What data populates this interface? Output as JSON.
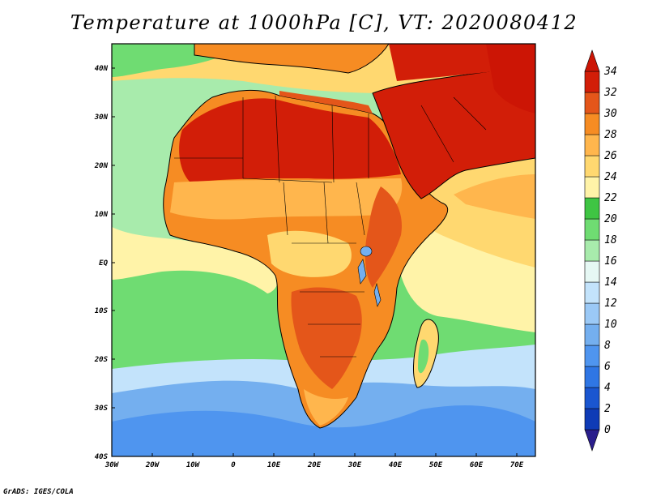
{
  "title": "Temperature at 1000hPa [C], VT: 2020080412",
  "footer": "GrADS: IGES/COLA",
  "map": {
    "lat_ticks": [
      "40N",
      "30N",
      "20N",
      "10N",
      "EQ",
      "10S",
      "20S",
      "30S",
      "40S"
    ],
    "lon_ticks": [
      "30W",
      "20W",
      "10W",
      "0",
      "10E",
      "20E",
      "30E",
      "40E",
      "50E",
      "60E",
      "70E"
    ]
  },
  "colorbar": {
    "levels": [
      "0",
      "2",
      "4",
      "6",
      "8",
      "10",
      "12",
      "14",
      "16",
      "18",
      "20",
      "22",
      "24",
      "26",
      "28",
      "30",
      "32",
      "34"
    ],
    "colors": [
      "#2a1e8c",
      "#0f3bb6",
      "#1a56d0",
      "#2f76e4",
      "#4f95ef",
      "#74afef",
      "#9bc9f6",
      "#c3e3fb",
      "#e6f8f4",
      "#a8ebac",
      "#6fdc72",
      "#3fc543",
      "#fff3a8",
      "#ffd870",
      "#ffb64d",
      "#f68c23",
      "#e4561a",
      "#d21e08",
      "#cc1505"
    ]
  },
  "colors": {
    "cold_ocean": "#4f95ef",
    "cool_ocean": "#74afef",
    "temperate_ocean": "#6fdc72",
    "warm_ocean": "#fff3a8",
    "hot_land": "#d21e08"
  }
}
